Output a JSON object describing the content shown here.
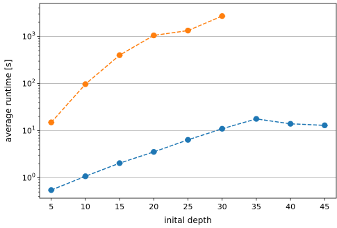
{
  "chart_data": {
    "type": "line",
    "xlabel": "inital depth",
    "ylabel": "average runtime [s]",
    "xlim": [
      3.3,
      46.7
    ],
    "ylim": [
      0.37,
      5000
    ],
    "yscale": "log",
    "x_ticks": [
      5,
      10,
      15,
      20,
      25,
      30,
      35,
      40,
      45
    ],
    "y_ticks": [
      {
        "value": 1,
        "base": "10",
        "exp": "0"
      },
      {
        "value": 10,
        "base": "10",
        "exp": "1"
      },
      {
        "value": 100,
        "base": "10",
        "exp": "2"
      },
      {
        "value": 1000,
        "base": "10",
        "exp": "3"
      }
    ],
    "grid": "y-major",
    "series": [
      {
        "color": "#ff7f0e",
        "x": [
          5,
          10,
          15,
          20,
          25,
          30
        ],
        "values": [
          15,
          97,
          400,
          1050,
          1330,
          2700
        ]
      },
      {
        "color": "#1f77b4",
        "x": [
          5,
          10,
          15,
          20,
          25,
          30,
          35,
          40,
          45
        ],
        "values": [
          0.55,
          1.08,
          2.05,
          3.55,
          6.4,
          11,
          17.8,
          14,
          13
        ]
      }
    ]
  }
}
